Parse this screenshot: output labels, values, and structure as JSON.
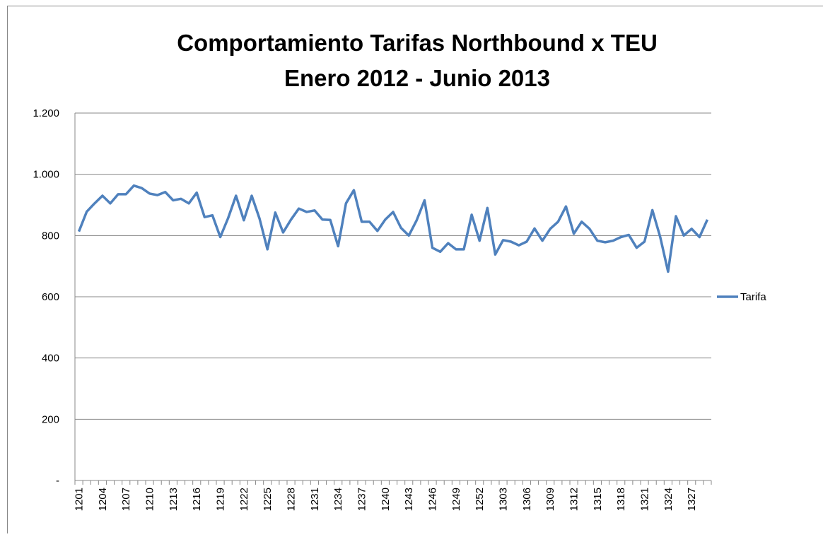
{
  "chart_data": {
    "type": "line",
    "title": "Comportamiento Tarifas Northbound x TEU",
    "subtitle": "Enero 2012 - Junio 2013",
    "categories": [
      "1201",
      null,
      null,
      "1204",
      null,
      null,
      "1207",
      null,
      null,
      "1210",
      null,
      null,
      "1213",
      null,
      null,
      "1216",
      null,
      null,
      "1219",
      null,
      null,
      "1222",
      null,
      null,
      "1225",
      null,
      null,
      "1228",
      null,
      null,
      "1231",
      null,
      null,
      "1234",
      null,
      null,
      "1237",
      null,
      null,
      "1240",
      null,
      null,
      "1243",
      null,
      null,
      "1246",
      null,
      null,
      "1249",
      null,
      null,
      "1252",
      null,
      null,
      "1303",
      null,
      null,
      "1306",
      null,
      null,
      "1309",
      null,
      null,
      "1312",
      null,
      null,
      "1315",
      null,
      null,
      "1318",
      null,
      null,
      "1321",
      null,
      null,
      "1324",
      null,
      null,
      "1327",
      null,
      null
    ],
    "series": [
      {
        "name": "Tarifa",
        "color": "#4f81bd",
        "values": [
          813,
          878,
          905,
          930,
          905,
          935,
          935,
          963,
          955,
          937,
          932,
          942,
          915,
          920,
          905,
          940,
          860,
          866,
          795,
          857,
          930,
          850,
          930,
          855,
          755,
          875,
          810,
          852,
          888,
          877,
          882,
          852,
          851,
          765,
          905,
          948,
          845,
          845,
          815,
          852,
          877,
          825,
          800,
          850,
          915,
          760,
          747,
          775,
          755,
          755,
          868,
          783,
          890,
          738,
          785,
          780,
          768,
          780,
          823,
          783,
          822,
          845,
          895,
          806,
          845,
          822,
          783,
          778,
          783,
          795,
          802,
          760,
          780,
          883,
          795,
          682,
          863,
          800,
          822,
          795,
          852
        ]
      }
    ],
    "ylim": [
      0,
      1200
    ],
    "yticks": [
      {
        "value": 0,
        "label": "-"
      },
      200,
      400,
      600,
      800,
      {
        "value": 1000,
        "label": "1.000"
      },
      {
        "value": 1200,
        "label": "1.200"
      }
    ],
    "grid": true,
    "legend": "right"
  }
}
